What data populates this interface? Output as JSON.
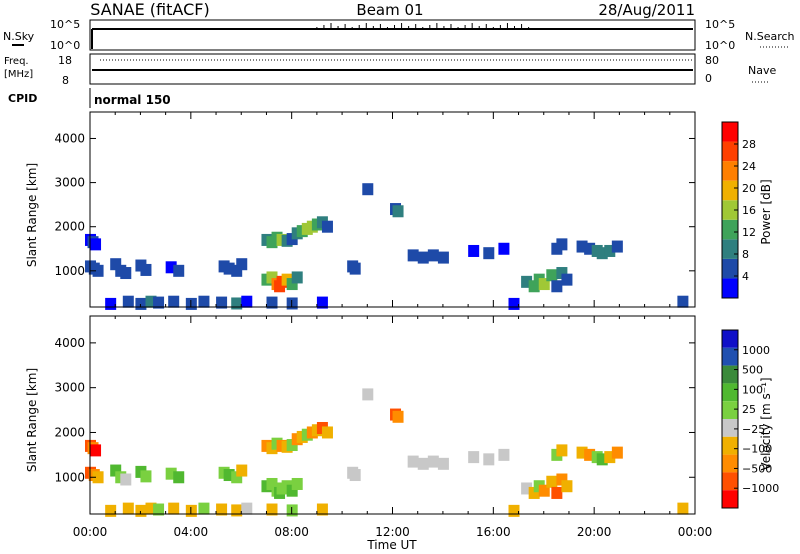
{
  "header": {
    "site": "SANAE (fitACF)",
    "beam": "Beam 01",
    "date": "28/Aug/2011"
  },
  "left_labels": {
    "nsky": "N.Sky",
    "freq": "Freq.",
    "freq_unit": "[MHz]",
    "cpid": "CPID"
  },
  "right_labels": {
    "nsearch": "N.Search",
    "nave": "Nave"
  },
  "cpid_text": "normal 150",
  "noise_ticks": {
    "top": "10^5",
    "bottom": "10^0"
  },
  "freq_ticks": {
    "top": "18",
    "bottom": "8"
  },
  "nave_ticks": {
    "top": "80",
    "bottom": "0"
  },
  "colors": {
    "power_scale": [
      "#0000ff",
      "#1e4aa8",
      "#2f7f7f",
      "#3fa35a",
      "#a0c836",
      "#f0b000",
      "#ff7f00",
      "#ff4000",
      "#ff0000"
    ],
    "velocity_scale": [
      "#1010c8",
      "#2050b0",
      "#3a8a3a",
      "#50b830",
      "#7ad040",
      "#c8c8c8",
      "#f0b000",
      "#ff8c00",
      "#ff5000",
      "#ff0000"
    ]
  },
  "chart_data": [
    {
      "type": "heatmap",
      "name": "power",
      "ylabel": "Slant Range [km]",
      "yticks": [
        "1000",
        "2000",
        "3000",
        "4000"
      ],
      "ylim": [
        180,
        4600
      ],
      "xlim": [
        0,
        24
      ],
      "colorbar_label": "Power [dB]",
      "colorbar_ticks": [
        "4",
        "8",
        "12",
        "16",
        "20",
        "24",
        "28"
      ],
      "clim": [
        0,
        30
      ],
      "cells": [
        [
          0.0,
          1700,
          2
        ],
        [
          0.1,
          1650,
          4
        ],
        [
          0.2,
          1600,
          3
        ],
        [
          0.0,
          1100,
          4
        ],
        [
          0.15,
          1050,
          6
        ],
        [
          0.3,
          1000,
          5
        ],
        [
          1.0,
          1150,
          4
        ],
        [
          1.2,
          1000,
          6
        ],
        [
          1.4,
          950,
          4
        ],
        [
          2.0,
          1120,
          5
        ],
        [
          2.2,
          1020,
          6
        ],
        [
          3.2,
          1080,
          3
        ],
        [
          3.5,
          1000,
          5
        ],
        [
          5.3,
          1100,
          4
        ],
        [
          5.5,
          1050,
          5
        ],
        [
          5.8,
          1000,
          5
        ],
        [
          6.0,
          1150,
          4
        ],
        [
          7.0,
          1700,
          8
        ],
        [
          7.2,
          1650,
          10
        ],
        [
          7.4,
          1750,
          12
        ],
        [
          7.6,
          1700,
          14
        ],
        [
          7.8,
          1680,
          8
        ],
        [
          8.0,
          1720,
          6
        ],
        [
          8.2,
          1850,
          9
        ],
        [
          8.4,
          1900,
          12
        ],
        [
          8.6,
          1950,
          16
        ],
        [
          8.8,
          2000,
          14
        ],
        [
          9.0,
          2050,
          10
        ],
        [
          9.2,
          2100,
          8
        ],
        [
          9.4,
          2000,
          6
        ],
        [
          7.0,
          800,
          10
        ],
        [
          7.2,
          850,
          14
        ],
        [
          7.4,
          700,
          20
        ],
        [
          7.5,
          650,
          26
        ],
        [
          7.6,
          750,
          24
        ],
        [
          7.8,
          800,
          18
        ],
        [
          8.0,
          700,
          12
        ],
        [
          8.2,
          850,
          9
        ],
        [
          12.1,
          2400,
          6
        ],
        [
          12.2,
          2350,
          8
        ],
        [
          11.0,
          2850,
          4
        ],
        [
          10.4,
          1100,
          4
        ],
        [
          10.5,
          1050,
          4
        ],
        [
          12.8,
          1350,
          4
        ],
        [
          13.2,
          1300,
          5
        ],
        [
          13.6,
          1350,
          5
        ],
        [
          14.0,
          1300,
          4
        ],
        [
          15.2,
          1450,
          3
        ],
        [
          15.8,
          1400,
          4
        ],
        [
          16.4,
          1500,
          3
        ],
        [
          17.3,
          750,
          8
        ],
        [
          17.6,
          650,
          10
        ],
        [
          17.8,
          800,
          12
        ],
        [
          18.0,
          700,
          14
        ],
        [
          18.3,
          900,
          10
        ],
        [
          18.5,
          650,
          6
        ],
        [
          18.7,
          950,
          8
        ],
        [
          18.9,
          800,
          5
        ],
        [
          18.5,
          1500,
          5
        ],
        [
          18.7,
          1600,
          6
        ],
        [
          19.5,
          1550,
          5
        ],
        [
          19.8,
          1500,
          6
        ],
        [
          20.1,
          1450,
          7
        ],
        [
          20.3,
          1400,
          9
        ],
        [
          20.6,
          1450,
          8
        ],
        [
          20.9,
          1550,
          5
        ],
        [
          1.5,
          300,
          4
        ],
        [
          2.0,
          250,
          6
        ],
        [
          2.4,
          300,
          8
        ],
        [
          2.7,
          280,
          5
        ],
        [
          3.3,
          300,
          4
        ],
        [
          4.0,
          250,
          6
        ],
        [
          4.5,
          300,
          5
        ],
        [
          5.2,
          280,
          4
        ],
        [
          5.8,
          260,
          7
        ],
        [
          6.2,
          300,
          3
        ],
        [
          7.2,
          280,
          4
        ],
        [
          8.0,
          260,
          5
        ],
        [
          9.2,
          280,
          3
        ],
        [
          23.5,
          300,
          4
        ],
        [
          0.8,
          250,
          3
        ],
        [
          16.8,
          250,
          3
        ]
      ]
    },
    {
      "type": "heatmap",
      "name": "velocity",
      "ylabel": "Slant Range [km]",
      "yticks": [
        "1000",
        "2000",
        "3000",
        "4000"
      ],
      "ylim": [
        180,
        4600
      ],
      "xlim": [
        0,
        24
      ],
      "xlabel": "Time UT",
      "xticks": [
        "00:00",
        "04:00",
        "08:00",
        "12:00",
        "16:00",
        "20:00",
        "00:00"
      ],
      "colorbar_label": "Velocity [m s⁻¹]",
      "colorbar_ticks": [
        "1000",
        "500",
        "100",
        "25",
        "−25",
        "−100",
        "−500",
        "−1000"
      ],
      "cells": [
        [
          0.0,
          1700,
          8
        ],
        [
          0.1,
          1650,
          7
        ],
        [
          0.2,
          1600,
          9
        ],
        [
          0.0,
          1100,
          8
        ],
        [
          0.15,
          1050,
          7
        ],
        [
          0.3,
          1000,
          6
        ],
        [
          1.0,
          1150,
          3
        ],
        [
          1.2,
          1000,
          4
        ],
        [
          1.4,
          950,
          5
        ],
        [
          2.0,
          1120,
          3
        ],
        [
          2.2,
          1020,
          4
        ],
        [
          3.2,
          1080,
          4
        ],
        [
          3.5,
          1000,
          3
        ],
        [
          5.3,
          1100,
          4
        ],
        [
          5.5,
          1050,
          3
        ],
        [
          5.8,
          1000,
          4
        ],
        [
          6.0,
          1150,
          6
        ],
        [
          7.0,
          1700,
          7
        ],
        [
          7.2,
          1650,
          6
        ],
        [
          7.4,
          1750,
          4
        ],
        [
          7.6,
          1700,
          7
        ],
        [
          7.8,
          1680,
          6
        ],
        [
          8.0,
          1720,
          4
        ],
        [
          8.2,
          1850,
          7
        ],
        [
          8.4,
          1900,
          6
        ],
        [
          8.6,
          1950,
          4
        ],
        [
          8.8,
          2000,
          7
        ],
        [
          9.0,
          2050,
          6
        ],
        [
          9.2,
          2100,
          8
        ],
        [
          9.4,
          2000,
          6
        ],
        [
          7.0,
          800,
          3
        ],
        [
          7.2,
          850,
          4
        ],
        [
          7.4,
          700,
          4
        ],
        [
          7.5,
          650,
          3
        ],
        [
          7.6,
          750,
          4
        ],
        [
          7.8,
          800,
          4
        ],
        [
          8.0,
          700,
          3
        ],
        [
          8.2,
          850,
          4
        ],
        [
          12.1,
          2400,
          8
        ],
        [
          12.2,
          2350,
          7
        ],
        [
          11.0,
          2850,
          5
        ],
        [
          10.4,
          1100,
          5
        ],
        [
          10.5,
          1050,
          5
        ],
        [
          12.8,
          1350,
          5
        ],
        [
          13.2,
          1300,
          5
        ],
        [
          13.6,
          1350,
          5
        ],
        [
          14.0,
          1300,
          5
        ],
        [
          15.2,
          1450,
          5
        ],
        [
          15.8,
          1400,
          5
        ],
        [
          16.4,
          1500,
          5
        ],
        [
          17.3,
          750,
          5
        ],
        [
          17.6,
          650,
          6
        ],
        [
          17.8,
          800,
          4
        ],
        [
          18.0,
          700,
          7
        ],
        [
          18.3,
          900,
          6
        ],
        [
          18.5,
          650,
          8
        ],
        [
          18.7,
          950,
          7
        ],
        [
          18.9,
          800,
          6
        ],
        [
          18.5,
          1500,
          4
        ],
        [
          18.7,
          1600,
          6
        ],
        [
          19.5,
          1550,
          6
        ],
        [
          19.8,
          1500,
          7
        ],
        [
          20.1,
          1450,
          4
        ],
        [
          20.3,
          1400,
          3
        ],
        [
          20.6,
          1450,
          6
        ],
        [
          20.9,
          1550,
          7
        ],
        [
          1.5,
          300,
          6
        ],
        [
          2.0,
          250,
          6
        ],
        [
          2.4,
          300,
          6
        ],
        [
          2.7,
          280,
          4
        ],
        [
          3.3,
          300,
          6
        ],
        [
          4.0,
          250,
          6
        ],
        [
          4.5,
          300,
          4
        ],
        [
          5.2,
          280,
          6
        ],
        [
          5.8,
          260,
          6
        ],
        [
          6.2,
          300,
          5
        ],
        [
          7.2,
          280,
          6
        ],
        [
          8.0,
          260,
          4
        ],
        [
          9.2,
          280,
          6
        ],
        [
          23.5,
          300,
          6
        ],
        [
          0.8,
          250,
          6
        ],
        [
          16.8,
          250,
          6
        ]
      ]
    }
  ]
}
